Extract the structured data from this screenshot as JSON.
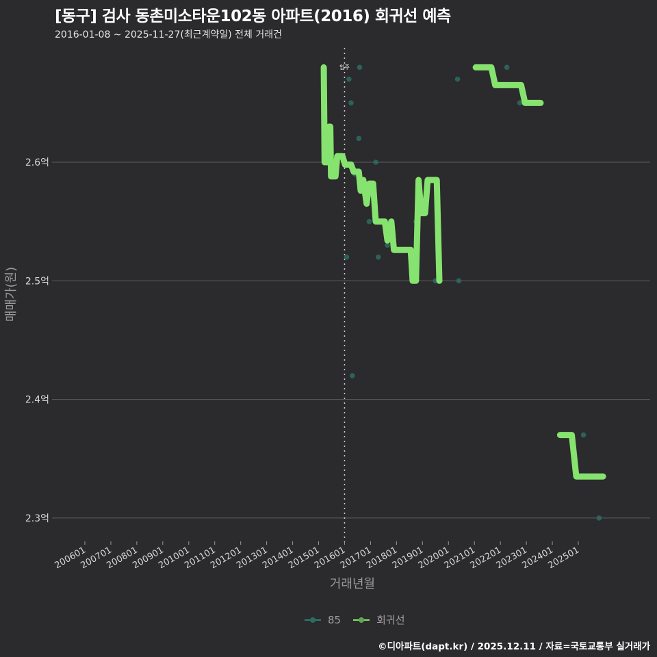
{
  "header": {
    "title": "[동구] 검사 동촌미소타운102동 아파트(2016) 회귀선 예측",
    "subtitle": "2016-01-08 ~ 2025-11-27(최근계약일) 전체 거래건"
  },
  "legend": {
    "items": [
      {
        "label": "85",
        "color": "#2e7d78"
      },
      {
        "label": "회귀선",
        "color": "#86e36f"
      }
    ]
  },
  "footer": {
    "credit": "©디아파트(dapt.kr) / 2025.12.11 / 자료=국토교통부 실거래가"
  },
  "annotation": {
    "label": "입주",
    "x": "201601"
  },
  "colors": {
    "background": "#2b2a2c",
    "grid": "#5e5e5e",
    "regression": "#86e36f",
    "points": "#2e6b63"
  },
  "chart_data": {
    "type": "line",
    "title": "[동구] 검사 동촌미소타운102동 아파트(2016) 회귀선 예측",
    "subtitle": "2016-01-08 ~ 2025-11-27(최근계약일) 전체 거래건",
    "xlabel": "거래년월",
    "ylabel": "매매가(원)",
    "x_ticks": [
      "200601",
      "200701",
      "200801",
      "200901",
      "201001",
      "201101",
      "201201",
      "201301",
      "201401",
      "201501",
      "201601",
      "201701",
      "201801",
      "201901",
      "202001",
      "202101",
      "202201",
      "202301",
      "202401",
      "202501"
    ],
    "y_ticks": [
      "2.3억",
      "2.4억",
      "2.5억",
      "2.6억"
    ],
    "y_tick_values": [
      2.3,
      2.4,
      2.5,
      2.6
    ],
    "ylim": [
      2.28,
      2.7
    ],
    "grid": "horizontal",
    "legend_position": "bottom",
    "vline": {
      "x": "201601",
      "label": "입주",
      "style": "dotted"
    },
    "series": [
      {
        "name": "85",
        "type": "scatter",
        "points": [
          {
            "x": 2016.58,
            "y": 2.68
          },
          {
            "x": 2016.17,
            "y": 2.67
          },
          {
            "x": 2016.25,
            "y": 2.65
          },
          {
            "x": 2016.55,
            "y": 2.62
          },
          {
            "x": 2016.4,
            "y": 2.59
          },
          {
            "x": 2017.2,
            "y": 2.6
          },
          {
            "x": 2016.95,
            "y": 2.55
          },
          {
            "x": 2017.3,
            "y": 2.52
          },
          {
            "x": 2017.65,
            "y": 2.53
          },
          {
            "x": 2018.75,
            "y": 2.55
          },
          {
            "x": 2016.08,
            "y": 2.52
          },
          {
            "x": 2019.5,
            "y": 2.5
          },
          {
            "x": 2020.4,
            "y": 2.5
          },
          {
            "x": 2016.3,
            "y": 2.42
          },
          {
            "x": 2020.35,
            "y": 2.67
          },
          {
            "x": 2022.25,
            "y": 2.68
          },
          {
            "x": 2022.75,
            "y": 2.65
          },
          {
            "x": 2025.2,
            "y": 2.37
          },
          {
            "x": 2025.8,
            "y": 2.3
          }
        ]
      },
      {
        "name": "회귀선",
        "type": "line",
        "segments": [
          [
            {
              "x": 2015.2,
              "y": 2.68
            },
            {
              "x": 2015.23,
              "y": 2.6
            },
            {
              "x": 2015.38,
              "y": 2.6
            },
            {
              "x": 2015.4,
              "y": 2.63
            },
            {
              "x": 2015.45,
              "y": 2.63
            },
            {
              "x": 2015.48,
              "y": 2.588
            },
            {
              "x": 2015.65,
              "y": 2.588
            },
            {
              "x": 2015.72,
              "y": 2.605
            },
            {
              "x": 2015.92,
              "y": 2.605
            },
            {
              "x": 2016.02,
              "y": 2.598
            },
            {
              "x": 2016.25,
              "y": 2.598
            },
            {
              "x": 2016.35,
              "y": 2.592
            },
            {
              "x": 2016.55,
              "y": 2.592
            },
            {
              "x": 2016.62,
              "y": 2.576
            },
            {
              "x": 2016.72,
              "y": 2.585
            },
            {
              "x": 2016.85,
              "y": 2.565
            },
            {
              "x": 2016.95,
              "y": 2.582
            },
            {
              "x": 2017.1,
              "y": 2.582
            },
            {
              "x": 2017.2,
              "y": 2.55
            },
            {
              "x": 2017.55,
              "y": 2.55
            },
            {
              "x": 2017.65,
              "y": 2.534
            },
            {
              "x": 2017.8,
              "y": 2.55
            },
            {
              "x": 2017.9,
              "y": 2.526
            },
            {
              "x": 2018.55,
              "y": 2.526
            },
            {
              "x": 2018.62,
              "y": 2.5
            },
            {
              "x": 2018.75,
              "y": 2.5
            },
            {
              "x": 2018.85,
              "y": 2.585
            },
            {
              "x": 2018.95,
              "y": 2.557
            },
            {
              "x": 2019.1,
              "y": 2.557
            },
            {
              "x": 2019.2,
              "y": 2.585
            },
            {
              "x": 2019.55,
              "y": 2.585
            },
            {
              "x": 2019.65,
              "y": 2.5
            }
          ],
          [
            {
              "x": 2021.05,
              "y": 2.68
            },
            {
              "x": 2021.65,
              "y": 2.68
            },
            {
              "x": 2021.8,
              "y": 2.665
            },
            {
              "x": 2022.8,
              "y": 2.665
            },
            {
              "x": 2022.95,
              "y": 2.65
            },
            {
              "x": 2023.55,
              "y": 2.65
            }
          ],
          [
            {
              "x": 2024.3,
              "y": 2.37
            },
            {
              "x": 2024.75,
              "y": 2.37
            },
            {
              "x": 2024.92,
              "y": 2.335
            },
            {
              "x": 2025.95,
              "y": 2.335
            }
          ]
        ]
      }
    ]
  }
}
